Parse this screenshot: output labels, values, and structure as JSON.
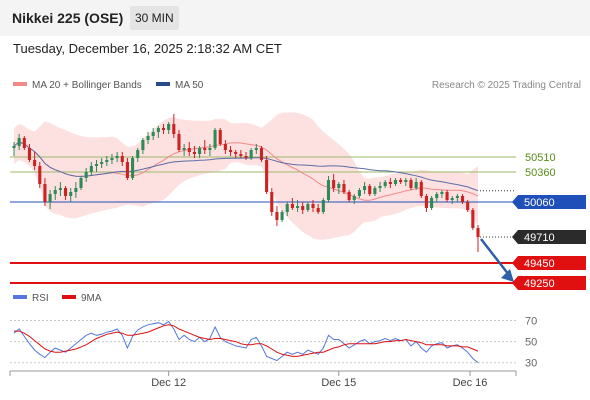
{
  "header": {
    "title": "Nikkei 225 (OSE)",
    "timeframe": "30 MIN",
    "datetime": "Tuesday, December 16, 2025 2:18:32 AM CET",
    "credit": "Research © 2025 Trading Central"
  },
  "legend": {
    "ma20_label": "MA 20 + Bollinger Bands",
    "ma50_label": "MA 50",
    "rsi_label": "RSI",
    "rsi_ma_label": "9MA"
  },
  "colors": {
    "bull": "#2e8b57",
    "bear": "#cc2222",
    "bollinger_fill": "#fde0e0",
    "ma20": "#f08a8a",
    "ma50": "#5a6ea8",
    "resistance": "#9ab86a",
    "pivot": "#1f4fb8",
    "support": "#e01010",
    "rsi": "#5577dd",
    "rsi_ma": "#dd1111",
    "arrow": "#2f5fa8"
  },
  "chart_data": [
    {
      "type": "candlestick",
      "title": "Nikkei 225 (OSE)",
      "timeframe": "30 MIN",
      "x_tick_labels": [
        "Dec 12",
        "Dec 15",
        "Dec 16"
      ],
      "ylim": [
        49180,
        50980
      ],
      "levels": [
        {
          "value": 50510,
          "label": "50510",
          "kind": "resistance"
        },
        {
          "value": 50360,
          "label": "50360",
          "kind": "resistance"
        },
        {
          "value": 50060,
          "label": "50060",
          "kind": "pivot"
        },
        {
          "value": 49710,
          "label": "49710",
          "kind": "last"
        },
        {
          "value": 49450,
          "label": "49450",
          "kind": "support"
        },
        {
          "value": 49250,
          "label": "49250",
          "kind": "support"
        }
      ],
      "candles_ohlc": [
        [
          50600,
          50660,
          50520,
          50620
        ],
        [
          50620,
          50740,
          50580,
          50700
        ],
        [
          50700,
          50720,
          50580,
          50600
        ],
        [
          50600,
          50640,
          50460,
          50480
        ],
        [
          50480,
          50560,
          50380,
          50420
        ],
        [
          50420,
          50460,
          50200,
          50240
        ],
        [
          50240,
          50300,
          50020,
          50060
        ],
        [
          50060,
          50180,
          49990,
          50140
        ],
        [
          50140,
          50220,
          50080,
          50180
        ],
        [
          50180,
          50260,
          50120,
          50200
        ],
        [
          50200,
          50220,
          50080,
          50120
        ],
        [
          50120,
          50200,
          50060,
          50160
        ],
        [
          50160,
          50260,
          50100,
          50200
        ],
        [
          50200,
          50320,
          50180,
          50300
        ],
        [
          50300,
          50400,
          50260,
          50360
        ],
        [
          50360,
          50460,
          50320,
          50420
        ],
        [
          50420,
          50480,
          50360,
          50440
        ],
        [
          50440,
          50500,
          50400,
          50460
        ],
        [
          50460,
          50520,
          50420,
          50480
        ],
        [
          50480,
          50540,
          50440,
          50500
        ],
        [
          50500,
          50560,
          50460,
          50520
        ],
        [
          50520,
          50560,
          50420,
          50460
        ],
        [
          50460,
          50500,
          50280,
          50300
        ],
        [
          50300,
          50520,
          50280,
          50500
        ],
        [
          50500,
          50600,
          50460,
          50580
        ],
        [
          50580,
          50700,
          50540,
          50680
        ],
        [
          50680,
          50760,
          50640,
          50720
        ],
        [
          50720,
          50800,
          50680,
          50760
        ],
        [
          50760,
          50820,
          50700,
          50800
        ],
        [
          50800,
          50840,
          50740,
          50780
        ],
        [
          50780,
          50860,
          50740,
          50840
        ],
        [
          50840,
          50940,
          50700,
          50740
        ],
        [
          50740,
          50780,
          50560,
          50580
        ],
        [
          50580,
          50640,
          50520,
          50600
        ],
        [
          50600,
          50660,
          50520,
          50560
        ],
        [
          50560,
          50620,
          50500,
          50540
        ],
        [
          50540,
          50620,
          50500,
          50600
        ],
        [
          50600,
          50680,
          50540,
          50580
        ],
        [
          50580,
          50640,
          50520,
          50600
        ],
        [
          50600,
          50800,
          50580,
          50780
        ],
        [
          50780,
          50800,
          50620,
          50640
        ],
        [
          50640,
          50680,
          50540,
          50580
        ],
        [
          50580,
          50620,
          50520,
          50560
        ],
        [
          50560,
          50580,
          50500,
          50540
        ],
        [
          50540,
          50580,
          50500,
          50520
        ],
        [
          50520,
          50560,
          50480,
          50500
        ],
        [
          50500,
          50600,
          50480,
          50580
        ],
        [
          50580,
          50640,
          50540,
          50600
        ],
        [
          50600,
          50620,
          50460,
          50480
        ],
        [
          50480,
          50520,
          50140,
          50160
        ],
        [
          50160,
          50200,
          49920,
          49960
        ],
        [
          49960,
          50020,
          49820,
          49880
        ],
        [
          49880,
          49980,
          49860,
          49960
        ],
        [
          49960,
          50060,
          49920,
          50040
        ],
        [
          50040,
          50100,
          49980,
          50000
        ],
        [
          50000,
          50080,
          49960,
          50020
        ],
        [
          50020,
          50060,
          49940,
          49980
        ],
        [
          49980,
          50060,
          49960,
          50040
        ],
        [
          50040,
          50080,
          49960,
          50000
        ],
        [
          50000,
          50040,
          49940,
          49960
        ],
        [
          49960,
          50100,
          49940,
          50080
        ],
        [
          50080,
          50320,
          50060,
          50280
        ],
        [
          50280,
          50340,
          50160,
          50200
        ],
        [
          50200,
          50260,
          50140,
          50240
        ],
        [
          50240,
          50280,
          50140,
          50160
        ],
        [
          50160,
          50180,
          50060,
          50080
        ],
        [
          50080,
          50140,
          50040,
          50120
        ],
        [
          50120,
          50200,
          50100,
          50180
        ],
        [
          50180,
          50260,
          50140,
          50220
        ],
        [
          50220,
          50240,
          50120,
          50140
        ],
        [
          50140,
          50220,
          50120,
          50200
        ],
        [
          50200,
          50260,
          50160,
          50220
        ],
        [
          50220,
          50280,
          50200,
          50260
        ],
        [
          50260,
          50300,
          50200,
          50240
        ],
        [
          50240,
          50300,
          50220,
          50280
        ],
        [
          50280,
          50300,
          50240,
          50260
        ],
        [
          50260,
          50300,
          50220,
          50280
        ],
        [
          50280,
          50300,
          50180,
          50200
        ],
        [
          50200,
          50300,
          50180,
          50260
        ],
        [
          50260,
          50280,
          50100,
          50120
        ],
        [
          50120,
          50140,
          49960,
          50000
        ],
        [
          50000,
          50120,
          49980,
          50100
        ],
        [
          50100,
          50160,
          50060,
          50140
        ],
        [
          50140,
          50180,
          50100,
          50160
        ],
        [
          50160,
          50180,
          50060,
          50080
        ],
        [
          50080,
          50120,
          50040,
          50100
        ],
        [
          50100,
          50140,
          50060,
          50120
        ],
        [
          50120,
          50140,
          50040,
          50060
        ],
        [
          50060,
          50080,
          49960,
          49980
        ],
        [
          49980,
          50000,
          49780,
          49800
        ],
        [
          49800,
          49830,
          49560,
          49710
        ]
      ]
    },
    {
      "type": "line",
      "title": "RSI",
      "ylim": [
        25,
        80
      ],
      "y_tick_labels": [
        "70",
        "50",
        "30"
      ],
      "y_ticks": [
        70,
        50,
        30
      ],
      "series": [
        {
          "name": "RSI",
          "values": [
            58,
            62,
            55,
            48,
            42,
            38,
            35,
            40,
            44,
            42,
            40,
            44,
            48,
            52,
            56,
            58,
            56,
            57,
            59,
            60,
            62,
            56,
            44,
            55,
            61,
            64,
            66,
            67,
            68,
            66,
            69,
            62,
            52,
            56,
            52,
            50,
            54,
            50,
            53,
            64,
            54,
            50,
            48,
            46,
            45,
            44,
            52,
            54,
            46,
            36,
            34,
            32,
            36,
            40,
            38,
            40,
            38,
            42,
            40,
            38,
            44,
            56,
            52,
            52,
            48,
            44,
            47,
            50,
            52,
            48,
            50,
            51,
            53,
            51,
            53,
            51,
            52,
            46,
            50,
            44,
            40,
            46,
            48,
            49,
            44,
            46,
            47,
            44,
            40,
            34,
            30
          ]
        },
        {
          "name": "9MA",
          "values": [
            60,
            60,
            58,
            55,
            51,
            47,
            43,
            41,
            40,
            40,
            41,
            42,
            43,
            45,
            47,
            50,
            53,
            55,
            57,
            58,
            59,
            58,
            56,
            56,
            57,
            58,
            59,
            61,
            63,
            65,
            66,
            65,
            62,
            60,
            58,
            56,
            54,
            53,
            52,
            53,
            53,
            52,
            51,
            50,
            48,
            47,
            47,
            48,
            48,
            46,
            43,
            40,
            38,
            37,
            36,
            36,
            37,
            38,
            39,
            40,
            40,
            42,
            44,
            45,
            47,
            48,
            48,
            48,
            48,
            48,
            48,
            49,
            50,
            50,
            51,
            51,
            52,
            51,
            50,
            49,
            47,
            47,
            47,
            47,
            46,
            46,
            46,
            45,
            45,
            43,
            41
          ]
        }
      ]
    }
  ]
}
